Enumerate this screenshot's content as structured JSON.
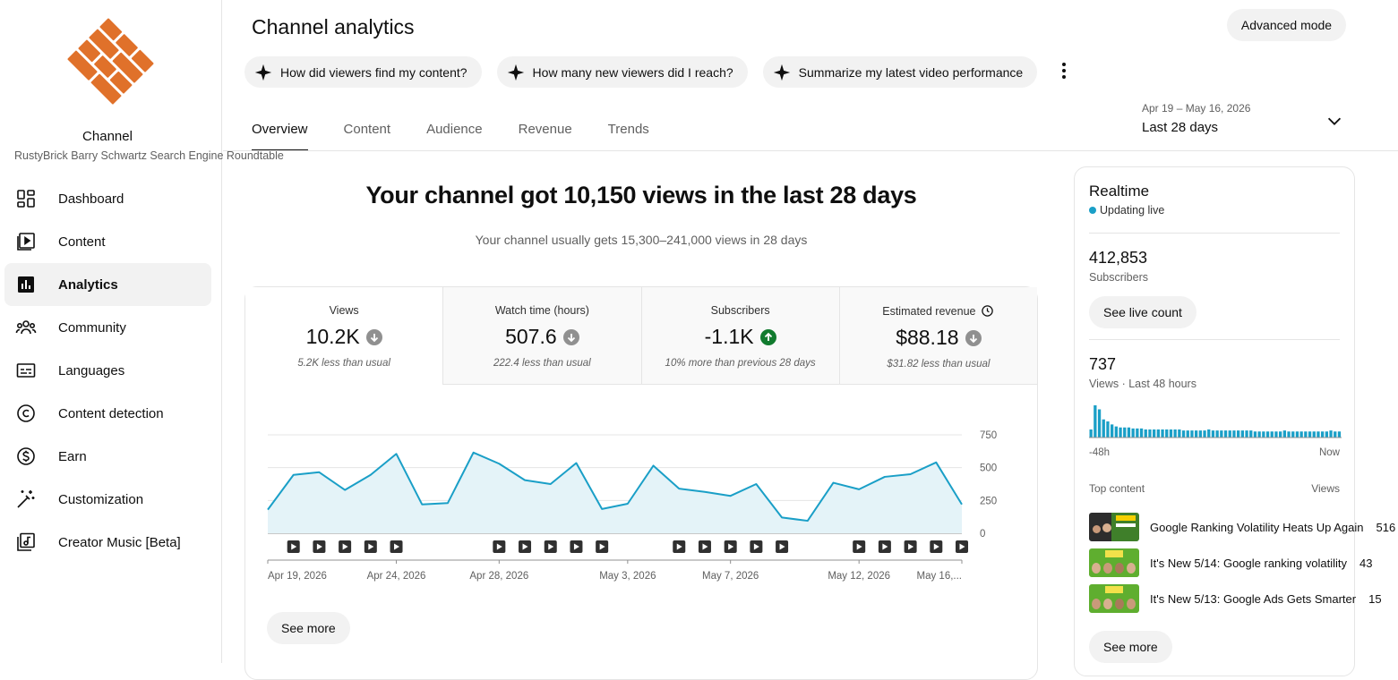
{
  "sidebar": {
    "channel_title": "Channel",
    "channel_subtitle": "RustyBrick Barry Schwartz Search Engine Roundtable",
    "items": [
      {
        "label": "Dashboard",
        "icon": "dashboard-icon"
      },
      {
        "label": "Content",
        "icon": "content-icon"
      },
      {
        "label": "Analytics",
        "icon": "analytics-icon",
        "active": true
      },
      {
        "label": "Community",
        "icon": "community-icon"
      },
      {
        "label": "Languages",
        "icon": "subtitles-icon"
      },
      {
        "label": "Content detection",
        "icon": "copyright-icon"
      },
      {
        "label": "Earn",
        "icon": "dollar-icon"
      },
      {
        "label": "Customization",
        "icon": "magic-wand-icon"
      },
      {
        "label": "Creator Music [Beta]",
        "icon": "music-icon"
      }
    ]
  },
  "header": {
    "title": "Channel analytics",
    "advanced_mode": "Advanced mode",
    "chips": [
      "How did viewers find my content?",
      "How many new viewers did I reach?",
      "Summarize my latest video performance"
    ],
    "tabs": [
      "Overview",
      "Content",
      "Audience",
      "Revenue",
      "Trends"
    ],
    "date_range": {
      "dates": "Apr 19 – May 16, 2026",
      "label": "Last 28 days"
    }
  },
  "main": {
    "headline": "Your channel got 10,150 views in the last 28 days",
    "subline": "Your channel usually gets 15,300–241,000 views in 28 days",
    "metrics": [
      {
        "title": "Views",
        "value": "10.2K",
        "trend": "down",
        "note": "5.2K less than usual"
      },
      {
        "title": "Watch time (hours)",
        "value": "507.6",
        "trend": "down",
        "note": "222.4 less than usual"
      },
      {
        "title": "Subscribers",
        "value": "-1.1K",
        "trend": "up",
        "note": "10% more than previous 28 days"
      },
      {
        "title": "Estimated revenue",
        "value": "$88.18",
        "trend": "down",
        "note": "$31.82 less than usual"
      }
    ],
    "see_more": "See more"
  },
  "chart_data": {
    "type": "area",
    "x": [
      "Apr 19, 2026",
      "Apr 20",
      "Apr 21",
      "Apr 22",
      "Apr 23",
      "Apr 24, 2026",
      "Apr 25",
      "Apr 26",
      "Apr 27",
      "Apr 28, 2026",
      "Apr 29",
      "Apr 30",
      "May 1",
      "May 2",
      "May 3, 2026",
      "May 4",
      "May 5",
      "May 6",
      "May 7, 2026",
      "May 8",
      "May 9",
      "May 10",
      "May 11",
      "May 12, 2026",
      "May 13",
      "May 14",
      "May 15",
      "May 16, 2026"
    ],
    "series": [
      {
        "values": [
          180,
          445,
          465,
          330,
          445,
          605,
          220,
          230,
          615,
          530,
          405,
          375,
          535,
          185,
          225,
          515,
          340,
          315,
          285,
          375,
          120,
          95,
          385,
          335,
          430,
          450,
          540,
          220
        ]
      }
    ],
    "x_tick_labels": [
      "Apr 19, 2026",
      "Apr 24, 2026",
      "Apr 28, 2026",
      "May 3, 2026",
      "May 7, 2026",
      "May 12, 2026",
      "May 16,..."
    ],
    "x_tick_indices": [
      0,
      5,
      9,
      14,
      18,
      23,
      27
    ],
    "y_ticks": [
      0,
      250,
      500,
      750
    ],
    "ylim": [
      0,
      750
    ],
    "video_marker_indices": [
      1,
      2,
      3,
      4,
      5,
      9,
      10,
      11,
      12,
      13,
      16,
      17,
      18,
      19,
      20,
      23,
      24,
      25,
      26,
      27
    ],
    "grid": true,
    "color": "#1a9fc7",
    "fill": "#e4f3f8"
  },
  "realtime": {
    "title": "Realtime",
    "status": "Updating live",
    "subscribers_value": "412,853",
    "subscribers_label": "Subscribers",
    "live_button": "See live count",
    "views_value": "737",
    "views_label": "Views · Last 48 hours",
    "spark_values": [
      8,
      32,
      28,
      18,
      16,
      13,
      11,
      10,
      10,
      10,
      9,
      9,
      9,
      8,
      8,
      8,
      8,
      8,
      8,
      8,
      8,
      8,
      7,
      7,
      7,
      7,
      7,
      7,
      8,
      7,
      7,
      7,
      7,
      7,
      7,
      7,
      7,
      7,
      7,
      6,
      6,
      6,
      6,
      6,
      6,
      6,
      7,
      6,
      6,
      6,
      6,
      6,
      6,
      6,
      6,
      6,
      6,
      7,
      6,
      6
    ],
    "spark_left": "-48h",
    "spark_right": "Now",
    "top_content_label": "Top content",
    "views_col": "Views",
    "top_content": [
      {
        "title": "Google Ranking Volatility Heats Up Again",
        "views": "516"
      },
      {
        "title": "It's New 5/14: Google ranking volatility",
        "views": "43"
      },
      {
        "title": "It's New 5/13: Google Ads Gets Smarter",
        "views": "15"
      }
    ],
    "see_more": "See more"
  },
  "colors": {
    "accent": "#1a9fc7",
    "logo": "#e0712a",
    "up": "#117b2e",
    "down": "#909090"
  }
}
